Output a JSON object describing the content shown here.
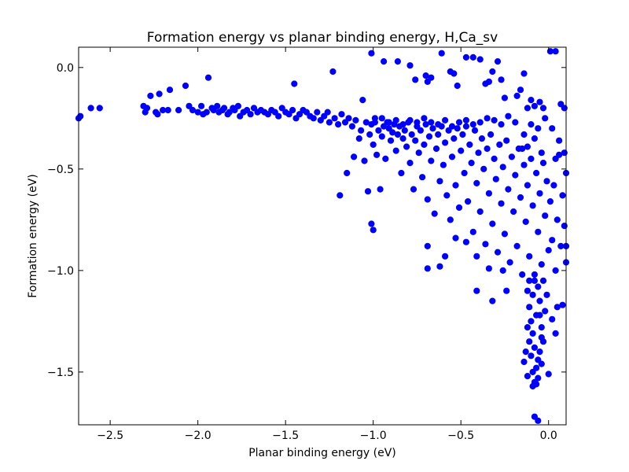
{
  "chart_data": {
    "type": "scatter",
    "title": "Formation energy vs planar binding energy, H,Ca_sv",
    "xlabel": "Planar binding energy (eV)",
    "ylabel": "Formation energy (eV)",
    "xlim": [
      -2.68,
      0.1
    ],
    "ylim": [
      -1.76,
      0.1
    ],
    "xticks": [
      -2.5,
      -2.0,
      -1.5,
      -1.0,
      -0.5,
      0.0
    ],
    "xtick_labels": [
      "−2.5",
      "−2.0",
      "−1.5",
      "−1.0",
      "−0.5",
      "0.0"
    ],
    "yticks": [
      0.0,
      -0.5,
      -1.0,
      -1.5
    ],
    "ytick_labels": [
      "0.0",
      "−0.5",
      "−1.0",
      "−1.5"
    ],
    "grid": false,
    "legend": false,
    "marker_color": "#0000ff",
    "points": [
      [
        -2.68,
        -0.25
      ],
      [
        -2.67,
        -0.24
      ],
      [
        -2.61,
        -0.2
      ],
      [
        -2.56,
        -0.2
      ],
      [
        -2.31,
        -0.19
      ],
      [
        -2.3,
        -0.22
      ],
      [
        -2.29,
        -0.2
      ],
      [
        -2.27,
        -0.14
      ],
      [
        -2.24,
        -0.22
      ],
      [
        -2.23,
        -0.23
      ],
      [
        -2.22,
        -0.13
      ],
      [
        -2.2,
        -0.21
      ],
      [
        -2.17,
        -0.21
      ],
      [
        -2.16,
        -0.11
      ],
      [
        -2.11,
        -0.21
      ],
      [
        -2.07,
        -0.09
      ],
      [
        -2.05,
        -0.19
      ],
      [
        -2.03,
        -0.21
      ],
      [
        -2.0,
        -0.22
      ],
      [
        -1.98,
        -0.19
      ],
      [
        -1.97,
        -0.23
      ],
      [
        -1.95,
        -0.22
      ],
      [
        -1.94,
        -0.05
      ],
      [
        -1.92,
        -0.2
      ],
      [
        -1.91,
        -0.21
      ],
      [
        -1.89,
        -0.19
      ],
      [
        -1.88,
        -0.22
      ],
      [
        -1.86,
        -0.21
      ],
      [
        -1.85,
        -0.2
      ],
      [
        -1.83,
        -0.23
      ],
      [
        -1.82,
        -0.22
      ],
      [
        -1.8,
        -0.2
      ],
      [
        -1.79,
        -0.21
      ],
      [
        -1.77,
        -0.19
      ],
      [
        -1.76,
        -0.24
      ],
      [
        -1.74,
        -0.22
      ],
      [
        -1.72,
        -0.21
      ],
      [
        -1.7,
        -0.23
      ],
      [
        -1.68,
        -0.2
      ],
      [
        -1.66,
        -0.22
      ],
      [
        -1.64,
        -0.21
      ],
      [
        -1.62,
        -0.22
      ],
      [
        -1.6,
        -0.23
      ],
      [
        -1.58,
        -0.21
      ],
      [
        -1.56,
        -0.22
      ],
      [
        -1.54,
        -0.24
      ],
      [
        -1.52,
        -0.2
      ],
      [
        -1.5,
        -0.22
      ],
      [
        -1.48,
        -0.23
      ],
      [
        -1.46,
        -0.21
      ],
      [
        -1.45,
        -0.08
      ],
      [
        -1.44,
        -0.25
      ],
      [
        -1.42,
        -0.23
      ],
      [
        -1.4,
        -0.21
      ],
      [
        -1.38,
        -0.22
      ],
      [
        -1.36,
        -0.24
      ],
      [
        -1.34,
        -0.25
      ],
      [
        -1.32,
        -0.22
      ],
      [
        -1.3,
        -0.26
      ],
      [
        -1.28,
        -0.24
      ],
      [
        -1.26,
        -0.22
      ],
      [
        -1.25,
        -0.27
      ],
      [
        -1.23,
        -0.02
      ],
      [
        -1.22,
        -0.25
      ],
      [
        -1.2,
        -0.28
      ],
      [
        -1.19,
        -0.63
      ],
      [
        -1.18,
        -0.23
      ],
      [
        -1.16,
        -0.27
      ],
      [
        -1.15,
        -0.52
      ],
      [
        -1.14,
        -0.25
      ],
      [
        -1.12,
        -0.29
      ],
      [
        -1.11,
        -0.44
      ],
      [
        -1.1,
        -0.26
      ],
      [
        -1.08,
        -0.35
      ],
      [
        -1.07,
        -0.31
      ],
      [
        -1.06,
        -0.16
      ],
      [
        -1.05,
        -0.46
      ],
      [
        -1.04,
        -0.27
      ],
      [
        -1.03,
        -0.61
      ],
      [
        -1.02,
        -0.33
      ],
      [
        -1.01,
        -0.28
      ],
      [
        -1.0,
        -0.38
      ],
      [
        -0.99,
        -0.25
      ],
      [
        -0.98,
        -0.43
      ],
      [
        -0.97,
        -0.31
      ],
      [
        -0.96,
        -0.6
      ],
      [
        -0.95,
        -0.34
      ],
      [
        -0.94,
        -0.29
      ],
      [
        -0.93,
        -0.45
      ],
      [
        -0.92,
        -0.27
      ],
      [
        -0.91,
        -0.3
      ],
      [
        -0.9,
        -0.36
      ],
      [
        -0.89,
        -0.32
      ],
      [
        -0.88,
        -0.28
      ],
      [
        -0.87,
        -0.41
      ],
      [
        -0.86,
        -0.33
      ],
      [
        -0.85,
        -0.29
      ],
      [
        -0.84,
        -0.52
      ],
      [
        -0.83,
        -0.35
      ],
      [
        -0.82,
        -0.31
      ],
      [
        -1.01,
        -0.77
      ],
      [
        -1.0,
        -0.8
      ],
      [
        -1.01,
        0.07
      ],
      [
        -0.94,
        0.03
      ],
      [
        -0.86,
        0.03
      ],
      [
        -0.79,
        0.01
      ],
      [
        -0.76,
        -0.06
      ],
      [
        -0.81,
        -0.39
      ],
      [
        -0.8,
        -0.27
      ],
      [
        -0.79,
        -0.47
      ],
      [
        -0.78,
        -0.33
      ],
      [
        -0.77,
        -0.6
      ],
      [
        -0.76,
        -0.36
      ],
      [
        -0.75,
        -0.29
      ],
      [
        -0.74,
        -0.42
      ],
      [
        -0.73,
        -0.31
      ],
      [
        -0.72,
        -0.54
      ],
      [
        -0.71,
        -0.38
      ],
      [
        -0.7,
        -0.28
      ],
      [
        -0.69,
        -0.65
      ],
      [
        -0.68,
        -0.34
      ],
      [
        -0.67,
        -0.46
      ],
      [
        -0.66,
        -0.3
      ],
      [
        -0.65,
        -0.72
      ],
      [
        -0.64,
        -0.4
      ],
      [
        -0.63,
        -0.33
      ],
      [
        -0.62,
        -0.56
      ],
      [
        -0.61,
        -0.29
      ],
      [
        -0.6,
        -0.48
      ],
      [
        -0.59,
        -0.37
      ],
      [
        -0.58,
        -0.63
      ],
      [
        -0.57,
        -0.31
      ],
      [
        -0.56,
        -0.75
      ],
      [
        -0.55,
        -0.44
      ],
      [
        -0.54,
        -0.35
      ],
      [
        -0.53,
        -0.58
      ],
      [
        -0.52,
        -0.3
      ],
      [
        -0.51,
        -0.69
      ],
      [
        -0.5,
        -0.41
      ],
      [
        -0.7,
        -0.04
      ],
      [
        -0.69,
        -0.07
      ],
      [
        -0.67,
        -0.05
      ],
      [
        -0.61,
        0.07
      ],
      [
        -0.56,
        -0.02
      ],
      [
        -0.54,
        -0.03
      ],
      [
        -0.52,
        -0.09
      ],
      [
        -0.47,
        0.05
      ],
      [
        -0.43,
        0.05
      ],
      [
        -0.39,
        0.04
      ],
      [
        -0.36,
        -0.08
      ],
      [
        -0.34,
        -0.07
      ],
      [
        -0.32,
        -0.02
      ],
      [
        -0.29,
        0.03
      ],
      [
        -0.27,
        -0.06
      ],
      [
        -0.25,
        -0.15
      ],
      [
        -0.69,
        -0.88
      ],
      [
        -0.69,
        -0.99
      ],
      [
        -0.62,
        -0.98
      ],
      [
        -0.59,
        -0.93
      ],
      [
        -0.53,
        -0.84
      ],
      [
        -0.47,
        -0.86
      ],
      [
        -0.41,
        -0.93
      ],
      [
        -0.41,
        -1.1
      ],
      [
        -0.34,
        -0.99
      ],
      [
        -0.32,
        -1.15
      ],
      [
        -0.26,
        -1.0
      ],
      [
        -0.24,
        -1.1
      ],
      [
        -0.49,
        -0.33
      ],
      [
        -0.48,
        -0.52
      ],
      [
        -0.47,
        -0.29
      ],
      [
        -0.46,
        -0.66
      ],
      [
        -0.45,
        -0.38
      ],
      [
        -0.44,
        -0.47
      ],
      [
        -0.43,
        -0.81
      ],
      [
        -0.42,
        -0.31
      ],
      [
        -0.41,
        -0.57
      ],
      [
        -0.4,
        -0.42
      ],
      [
        -0.39,
        -0.71
      ],
      [
        -0.38,
        -0.35
      ],
      [
        -0.37,
        -0.5
      ],
      [
        -0.36,
        -0.87
      ],
      [
        -0.35,
        -0.4
      ],
      [
        -0.34,
        -0.62
      ],
      [
        -0.33,
        -0.33
      ],
      [
        -0.32,
        -0.77
      ],
      [
        -0.31,
        -0.45
      ],
      [
        -0.3,
        -0.55
      ],
      [
        -0.29,
        -0.91
      ],
      [
        -0.28,
        -0.38
      ],
      [
        -0.27,
        -0.67
      ],
      [
        -0.26,
        -0.49
      ],
      [
        -0.25,
        -0.82
      ],
      [
        -0.24,
        -0.36
      ],
      [
        -0.23,
        -0.6
      ],
      [
        -0.22,
        -0.96
      ],
      [
        -0.21,
        -0.44
      ],
      [
        -0.2,
        -0.71
      ],
      [
        -0.19,
        -0.53
      ],
      [
        -0.18,
        -0.88
      ],
      [
        -0.17,
        -0.4
      ],
      [
        -0.16,
        -0.64
      ],
      [
        -0.15,
        -1.02
      ],
      [
        -0.14,
        -0.48
      ],
      [
        -0.13,
        -0.76
      ],
      [
        -0.12,
        -0.58
      ],
      [
        -0.11,
        -0.93
      ],
      [
        -0.1,
        -0.45
      ],
      [
        -0.09,
        -0.68
      ],
      [
        -0.08,
        -1.05
      ],
      [
        -0.07,
        -0.52
      ],
      [
        -0.06,
        -0.81
      ],
      [
        -0.05,
        -0.62
      ],
      [
        -0.04,
        -0.97
      ],
      [
        -0.03,
        -0.47
      ],
      [
        -0.02,
        -0.73
      ],
      [
        -0.01,
        -0.56
      ],
      [
        0.0,
        -0.9
      ],
      [
        0.01,
        -0.66
      ],
      [
        0.02,
        -0.85
      ],
      [
        0.03,
        -0.58
      ],
      [
        0.04,
        -1.0
      ],
      [
        0.05,
        -0.75
      ],
      [
        0.06,
        -0.43
      ],
      [
        0.07,
        -0.88
      ],
      [
        0.08,
        -0.63
      ],
      [
        0.09,
        -0.78
      ],
      [
        0.1,
        -0.96
      ],
      [
        0.09,
        -0.42
      ],
      [
        0.1,
        -0.52
      ],
      [
        0.1,
        -0.88
      ],
      [
        0.08,
        -1.17
      ],
      [
        -0.15,
        -0.4
      ],
      [
        -0.14,
        -0.33
      ],
      [
        -0.12,
        -0.39
      ],
      [
        -0.1,
        -0.28
      ],
      [
        -0.08,
        -0.35
      ],
      [
        -0.06,
        -0.3
      ],
      [
        -0.04,
        -0.42
      ],
      [
        -0.02,
        -0.25
      ],
      [
        0.02,
        -0.3
      ],
      [
        0.04,
        -0.45
      ],
      [
        0.06,
        -0.36
      ],
      [
        -0.19,
        -0.27
      ],
      [
        -0.23,
        -0.24
      ],
      [
        -0.27,
        -0.28
      ],
      [
        -0.31,
        -0.26
      ],
      [
        -0.35,
        -0.25
      ],
      [
        -0.39,
        -0.27
      ],
      [
        -0.43,
        -0.28
      ],
      [
        -0.47,
        -0.26
      ],
      [
        -0.51,
        -0.27
      ],
      [
        -0.55,
        -0.29
      ],
      [
        -0.59,
        -0.26
      ],
      [
        -0.63,
        -0.28
      ],
      [
        -0.67,
        -0.27
      ],
      [
        -0.71,
        -0.25
      ],
      [
        -0.75,
        -0.27
      ],
      [
        -0.79,
        -0.26
      ],
      [
        -0.83,
        -0.28
      ],
      [
        -0.87,
        -0.26
      ],
      [
        -0.91,
        -0.27
      ],
      [
        -0.95,
        -0.25
      ],
      [
        -0.99,
        -0.27
      ],
      [
        -0.18,
        -0.14
      ],
      [
        -0.16,
        -0.11
      ],
      [
        -0.14,
        -0.03
      ],
      [
        -0.12,
        -0.2
      ],
      [
        -0.1,
        -0.16
      ],
      [
        -0.08,
        -0.19
      ],
      [
        -0.05,
        -0.17
      ],
      [
        -0.03,
        -0.2
      ],
      [
        0.01,
        0.08
      ],
      [
        0.04,
        0.08
      ],
      [
        0.07,
        -0.18
      ],
      [
        0.09,
        -0.2
      ],
      [
        -0.12,
        -1.1
      ],
      [
        -0.11,
        -1.18
      ],
      [
        -0.1,
        -1.25
      ],
      [
        -0.09,
        -1.31
      ],
      [
        -0.08,
        -1.38
      ],
      [
        -0.07,
        -1.22
      ],
      [
        -0.06,
        -1.44
      ],
      [
        -0.05,
        -1.15
      ],
      [
        -0.04,
        -1.28
      ],
      [
        -0.03,
        -1.35
      ],
      [
        -0.02,
        -1.2
      ],
      [
        -0.01,
        -1.12
      ],
      [
        -0.1,
        -1.42
      ],
      [
        -0.09,
        -1.5
      ],
      [
        -0.08,
        -1.55
      ],
      [
        -0.07,
        -1.48
      ],
      [
        -0.06,
        -1.53
      ],
      [
        -0.11,
        -1.35
      ],
      [
        -0.12,
        -1.28
      ],
      [
        -0.13,
        -1.4
      ],
      [
        -0.14,
        -1.45
      ],
      [
        -0.12,
        -1.52
      ],
      [
        -0.09,
        -1.57
      ],
      [
        -0.07,
        -1.56
      ],
      [
        -0.05,
        -1.4
      ],
      [
        -0.04,
        -1.33
      ],
      [
        -0.11,
        -1.05
      ],
      [
        -0.09,
        -1.12
      ],
      [
        -0.08,
        -1.02
      ],
      [
        -0.06,
        -1.08
      ],
      [
        -0.05,
        -1.22
      ],
      [
        -0.03,
        -1.05
      ],
      [
        -0.08,
        -1.72
      ],
      [
        -0.06,
        -1.74
      ],
      [
        -0.04,
        -1.46
      ],
      [
        0.0,
        -1.51
      ],
      [
        0.02,
        -1.24
      ],
      [
        0.04,
        -1.31
      ],
      [
        0.05,
        -1.18
      ]
    ]
  }
}
